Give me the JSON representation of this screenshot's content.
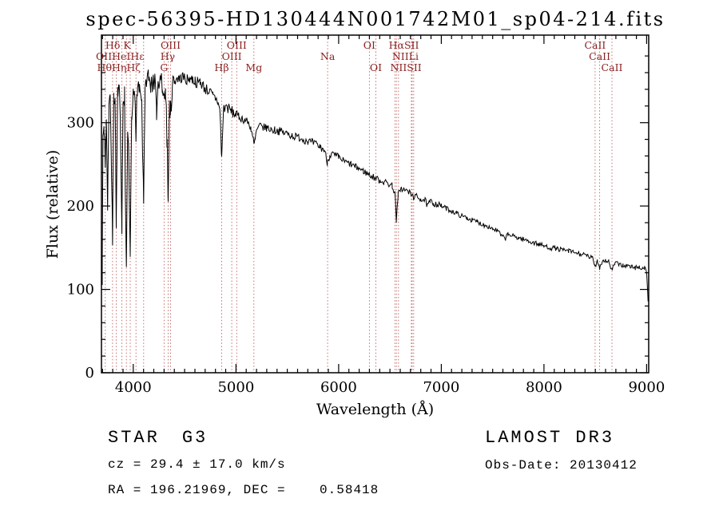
{
  "info": {
    "class": "STAR",
    "subclass": "G3",
    "cz": "cz = 29.4 ± 17.0 km/s",
    "radec": "RA = 196.21969, DEC =    0.58418",
    "survey": "LAMOST DR3",
    "obs_date": "Obs-Date: 20130412"
  },
  "colors": {
    "background": "#ffffff",
    "spectrum": "#000000",
    "marker_line": "#c06060",
    "line_label": "#8b2020",
    "axis": "#000000"
  },
  "chart_data": {
    "type": "line",
    "title": "spec-56395-HD130444N001742M01_sp04-214.fits",
    "xlabel": "Wavelength (Å)",
    "ylabel": "Flux (relative)",
    "xlim": [
      3690,
      9020
    ],
    "ylim": [
      0,
      405
    ],
    "xticks": [
      4000,
      5000,
      6000,
      7000,
      8000,
      9000
    ],
    "yticks": [
      0,
      100,
      200,
      300
    ],
    "x_minor_step": 100,
    "y_minor_step": 20,
    "grid": false,
    "legend": "none",
    "marker_lines": [
      3727,
      3798,
      3835,
      3889,
      3933,
      3970,
      4026,
      4101,
      4300,
      4340,
      4363,
      4861,
      4959,
      5007,
      5175,
      5893,
      6300,
      6363,
      6548,
      6563,
      6583,
      6708,
      6716,
      6731,
      8498,
      8542,
      8662
    ],
    "line_labels": [
      {
        "text": "Hδ K",
        "wl": 3852,
        "row": 1
      },
      {
        "text": "OIIHeIHε",
        "wl": 3872,
        "row": 2
      },
      {
        "text": "HθHηHζ",
        "wl": 3860,
        "row": 3
      },
      {
        "text": "OIII",
        "wl": 4363,
        "row": 1
      },
      {
        "text": "Hγ",
        "wl": 4335,
        "row": 2
      },
      {
        "text": "G",
        "wl": 4300,
        "row": 3
      },
      {
        "text": "OIII",
        "wl": 5007,
        "row": 1
      },
      {
        "text": "OIII",
        "wl": 4959,
        "row": 2
      },
      {
        "text": "Hβ",
        "wl": 4861,
        "row": 3
      },
      {
        "text": "Mg",
        "wl": 5175,
        "row": 3
      },
      {
        "text": "Na",
        "wl": 5893,
        "row": 2
      },
      {
        "text": "OI",
        "wl": 6300,
        "row": 1
      },
      {
        "text": "OI",
        "wl": 6363,
        "row": 3
      },
      {
        "text": "HαSII",
        "wl": 6635,
        "row": 1
      },
      {
        "text": "NIILi",
        "wl": 6650,
        "row": 2
      },
      {
        "text": "NIISII",
        "wl": 6655,
        "row": 3
      },
      {
        "text": "CaII",
        "wl": 8498,
        "row": 1
      },
      {
        "text": "CaII",
        "wl": 8542,
        "row": 2
      },
      {
        "text": "CaII",
        "wl": 8662,
        "row": 3
      }
    ],
    "noise_model": {
      "seed": 7,
      "amp_by_band": [
        [
          4400,
          15
        ],
        [
          5000,
          7
        ],
        [
          6000,
          5
        ],
        [
          7000,
          4
        ],
        [
          999999,
          3
        ]
      ],
      "blue_spike_prob": 0.06,
      "blue_spike_max": 45,
      "sample_step_angstrom": 8
    },
    "series": [
      {
        "name": "flux",
        "points": [
          [
            3698,
            120
          ],
          [
            3705,
            285
          ],
          [
            3715,
            295
          ],
          [
            3727,
            255
          ],
          [
            3738,
            310
          ],
          [
            3750,
            205
          ],
          [
            3762,
            320
          ],
          [
            3775,
            330
          ],
          [
            3788,
            250
          ],
          [
            3798,
            155
          ],
          [
            3810,
            330
          ],
          [
            3822,
            335
          ],
          [
            3835,
            175
          ],
          [
            3848,
            330
          ],
          [
            3862,
            335
          ],
          [
            3875,
            300
          ],
          [
            3889,
            165
          ],
          [
            3901,
            320
          ],
          [
            3915,
            330
          ],
          [
            3933,
            112
          ],
          [
            3945,
            280
          ],
          [
            3956,
            255
          ],
          [
            3970,
            132
          ],
          [
            3984,
            300
          ],
          [
            4000,
            330
          ],
          [
            4014,
            340
          ],
          [
            4026,
            292
          ],
          [
            4040,
            345
          ],
          [
            4060,
            340
          ],
          [
            4080,
            332
          ],
          [
            4101,
            205
          ],
          [
            4114,
            330
          ],
          [
            4130,
            345
          ],
          [
            4150,
            350
          ],
          [
            4170,
            346
          ],
          [
            4190,
            342
          ],
          [
            4210,
            350
          ],
          [
            4227,
            302
          ],
          [
            4242,
            346
          ],
          [
            4262,
            350
          ],
          [
            4282,
            346
          ],
          [
            4300,
            322
          ],
          [
            4314,
            336
          ],
          [
            4328,
            285
          ],
          [
            4340,
            212
          ],
          [
            4352,
            320
          ],
          [
            4363,
            312
          ],
          [
            4380,
            346
          ],
          [
            4400,
            350
          ],
          [
            4425,
            354
          ],
          [
            4450,
            352
          ],
          [
            4475,
            355
          ],
          [
            4500,
            354
          ],
          [
            4525,
            351
          ],
          [
            4550,
            354
          ],
          [
            4575,
            352
          ],
          [
            4600,
            350
          ],
          [
            4625,
            348
          ],
          [
            4650,
            350
          ],
          [
            4675,
            345
          ],
          [
            4700,
            341
          ],
          [
            4725,
            339
          ],
          [
            4750,
            336
          ],
          [
            4775,
            332
          ],
          [
            4800,
            329
          ],
          [
            4825,
            325
          ],
          [
            4845,
            312
          ],
          [
            4861,
            256
          ],
          [
            4878,
            316
          ],
          [
            4900,
            320
          ],
          [
            4925,
            317
          ],
          [
            4950,
            314
          ],
          [
            4975,
            312
          ],
          [
            5000,
            310
          ],
          [
            5030,
            307
          ],
          [
            5060,
            305
          ],
          [
            5090,
            303
          ],
          [
            5120,
            300
          ],
          [
            5145,
            294
          ],
          [
            5167,
            281
          ],
          [
            5175,
            273
          ],
          [
            5186,
            279
          ],
          [
            5200,
            290
          ],
          [
            5230,
            296
          ],
          [
            5265,
            294
          ],
          [
            5300,
            294
          ],
          [
            5340,
            292
          ],
          [
            5380,
            291
          ],
          [
            5420,
            290
          ],
          [
            5460,
            288
          ],
          [
            5500,
            287
          ],
          [
            5540,
            285
          ],
          [
            5580,
            283
          ],
          [
            5620,
            282
          ],
          [
            5660,
            280
          ],
          [
            5700,
            278
          ],
          [
            5740,
            276
          ],
          [
            5780,
            274
          ],
          [
            5820,
            271
          ],
          [
            5860,
            267
          ],
          [
            5890,
            253
          ],
          [
            5912,
            261
          ],
          [
            5940,
            262
          ],
          [
            5970,
            260
          ],
          [
            6000,
            258
          ],
          [
            6040,
            255
          ],
          [
            6080,
            252
          ],
          [
            6120,
            250
          ],
          [
            6160,
            247
          ],
          [
            6200,
            245
          ],
          [
            6240,
            242
          ],
          [
            6280,
            239
          ],
          [
            6320,
            236
          ],
          [
            6360,
            233
          ],
          [
            6400,
            231
          ],
          [
            6440,
            229
          ],
          [
            6480,
            227
          ],
          [
            6520,
            225
          ],
          [
            6548,
            216
          ],
          [
            6563,
            181
          ],
          [
            6580,
            214
          ],
          [
            6600,
            221
          ],
          [
            6640,
            219
          ],
          [
            6680,
            217
          ],
          [
            6708,
            213
          ],
          [
            6731,
            211
          ],
          [
            6760,
            211
          ],
          [
            6800,
            209
          ],
          [
            6840,
            207
          ],
          [
            6867,
            200
          ],
          [
            6890,
            205
          ],
          [
            6920,
            204
          ],
          [
            6960,
            202
          ],
          [
            7000,
            200
          ],
          [
            7050,
            197
          ],
          [
            7100,
            194
          ],
          [
            7150,
            191
          ],
          [
            7200,
            188
          ],
          [
            7250,
            186
          ],
          [
            7300,
            183
          ],
          [
            7350,
            181
          ],
          [
            7400,
            178
          ],
          [
            7450,
            176
          ],
          [
            7500,
            173
          ],
          [
            7550,
            170
          ],
          [
            7594,
            163
          ],
          [
            7620,
            161
          ],
          [
            7650,
            166
          ],
          [
            7700,
            164
          ],
          [
            7750,
            162
          ],
          [
            7800,
            160
          ],
          [
            7850,
            158
          ],
          [
            7900,
            156
          ],
          [
            7950,
            154
          ],
          [
            8000,
            152
          ],
          [
            8060,
            150
          ],
          [
            8120,
            149
          ],
          [
            8180,
            147
          ],
          [
            8240,
            146
          ],
          [
            8300,
            144
          ],
          [
            8360,
            142
          ],
          [
            8420,
            140
          ],
          [
            8470,
            138
          ],
          [
            8498,
            128
          ],
          [
            8520,
            135
          ],
          [
            8542,
            126
          ],
          [
            8565,
            133
          ],
          [
            8600,
            135
          ],
          [
            8630,
            133
          ],
          [
            8662,
            123
          ],
          [
            8690,
            131
          ],
          [
            8730,
            130
          ],
          [
            8770,
            129
          ],
          [
            8810,
            128
          ],
          [
            8850,
            127
          ],
          [
            8890,
            126
          ],
          [
            8930,
            127
          ],
          [
            8960,
            125
          ],
          [
            8980,
            126
          ],
          [
            9000,
            122
          ],
          [
            9008,
            100
          ],
          [
            9014,
            88
          ]
        ]
      }
    ]
  }
}
